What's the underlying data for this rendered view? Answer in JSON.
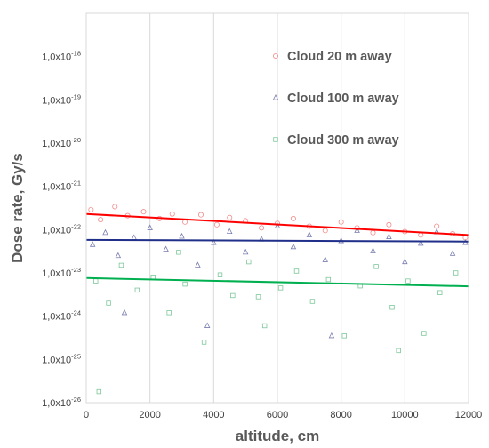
{
  "chart_data": {
    "type": "scatter",
    "title": "",
    "xlabel": "altitude, cm",
    "ylabel": "Dose rate, Gy/s",
    "xlim": [
      0,
      12000
    ],
    "ylim_log10": [
      -26,
      -17
    ],
    "y_scale": "log",
    "grid": {
      "vertical": true,
      "horizontal": false
    },
    "legend_position": "top-right",
    "x_ticks": [
      "0",
      "2000",
      "4000",
      "6000",
      "8000",
      "10000",
      "12000"
    ],
    "y_ticks": [
      {
        "base": "1,0x10",
        "exp": "-18"
      },
      {
        "base": "1,0x10",
        "exp": "-19"
      },
      {
        "base": "1,0x10",
        "exp": "-20"
      },
      {
        "base": "1,0x10",
        "exp": "-21"
      },
      {
        "base": "1,0x10",
        "exp": "-22"
      },
      {
        "base": "1,0x10",
        "exp": "-23"
      },
      {
        "base": "1,0x10",
        "exp": "-24"
      },
      {
        "base": "1,0x10",
        "exp": "-25"
      },
      {
        "base": "1,0x10",
        "exp": "-26"
      }
    ],
    "series": [
      {
        "name": "Cloud 20 m away",
        "marker": "circle",
        "color": "#f28c8c",
        "trend_color": "#ff0000",
        "trend": {
          "x": [
            0,
            12000
          ],
          "y": [
            2.3e-22,
            7.5e-23
          ]
        },
        "points": [
          [
            150,
            2.9e-22
          ],
          [
            450,
            1.7e-22
          ],
          [
            900,
            3.4e-22
          ],
          [
            1300,
            2.1e-22
          ],
          [
            1800,
            2.6e-22
          ],
          [
            2300,
            1.8e-22
          ],
          [
            2700,
            2.3e-22
          ],
          [
            3100,
            1.5e-22
          ],
          [
            3600,
            2.2e-22
          ],
          [
            4100,
            1.3e-22
          ],
          [
            4500,
            1.9e-22
          ],
          [
            5000,
            1.6e-22
          ],
          [
            5500,
            1.1e-22
          ],
          [
            6000,
            1.4e-22
          ],
          [
            6500,
            1.8e-22
          ],
          [
            7000,
            1.2e-22
          ],
          [
            7500,
            9.5e-23
          ],
          [
            8000,
            1.5e-22
          ],
          [
            8500,
            1.1e-22
          ],
          [
            9000,
            8.5e-23
          ],
          [
            9500,
            1.3e-22
          ],
          [
            10000,
            9e-23
          ],
          [
            10500,
            7.5e-23
          ],
          [
            11000,
            1.2e-22
          ],
          [
            11500,
            8e-23
          ],
          [
            11900,
            6.5e-23
          ]
        ]
      },
      {
        "name": "Cloud 100 m away",
        "marker": "triangle",
        "color": "#7a7fb0",
        "trend_color": "#1f2f8a",
        "trend": {
          "x": [
            0,
            12000
          ],
          "y": [
            5.8e-23,
            5.3e-23
          ]
        },
        "points": [
          [
            200,
            4.5e-23
          ],
          [
            600,
            8.5e-23
          ],
          [
            1000,
            2.5e-23
          ],
          [
            1500,
            6.5e-23
          ],
          [
            2000,
            1.1e-22
          ],
          [
            2500,
            3.5e-23
          ],
          [
            3000,
            7e-23
          ],
          [
            3500,
            1.5e-23
          ],
          [
            4000,
            5e-23
          ],
          [
            4500,
            9e-23
          ],
          [
            5000,
            3e-23
          ],
          [
            5500,
            6e-23
          ],
          [
            6000,
            1.2e-22
          ],
          [
            6500,
            4e-23
          ],
          [
            7000,
            7.5e-23
          ],
          [
            7500,
            2e-23
          ],
          [
            8000,
            5.5e-23
          ],
          [
            8500,
            9.5e-23
          ],
          [
            9000,
            3.2e-23
          ],
          [
            9500,
            6.8e-23
          ],
          [
            10000,
            1.8e-23
          ],
          [
            10500,
            4.8e-23
          ],
          [
            11000,
            8.8e-23
          ],
          [
            11500,
            2.8e-23
          ],
          [
            11900,
            5e-23
          ],
          [
            3800,
            6e-25
          ],
          [
            7700,
            3.5e-25
          ],
          [
            1200,
            1.2e-24
          ]
        ]
      },
      {
        "name": "Cloud 300 m away",
        "marker": "square",
        "color": "#7dc79a",
        "trend_color": "#00b050",
        "trend": {
          "x": [
            0,
            12000
          ],
          "y": [
            7.6e-24,
            4.9e-24
          ]
        },
        "points": [
          [
            300,
            6.5e-24
          ],
          [
            700,
            2e-24
          ],
          [
            1100,
            1.5e-23
          ],
          [
            1600,
            4e-24
          ],
          [
            2100,
            8e-24
          ],
          [
            2600,
            1.2e-24
          ],
          [
            3100,
            5.5e-24
          ],
          [
            3700,
            2.5e-25
          ],
          [
            4200,
            9e-24
          ],
          [
            4600,
            3e-24
          ],
          [
            5100,
            1.8e-23
          ],
          [
            5600,
            6e-25
          ],
          [
            6100,
            4.5e-24
          ],
          [
            6600,
            1.1e-23
          ],
          [
            7100,
            2.2e-24
          ],
          [
            7600,
            7e-24
          ],
          [
            8100,
            3.5e-25
          ],
          [
            8600,
            5e-24
          ],
          [
            9100,
            1.4e-23
          ],
          [
            9600,
            1.6e-24
          ],
          [
            10100,
            6.5e-24
          ],
          [
            10600,
            4e-25
          ],
          [
            11100,
            3.5e-24
          ],
          [
            11600,
            1e-23
          ],
          [
            400,
            1.8e-26
          ],
          [
            9800,
            1.6e-25
          ],
          [
            5400,
            2.8e-24
          ],
          [
            2900,
            3e-23
          ]
        ]
      }
    ]
  }
}
